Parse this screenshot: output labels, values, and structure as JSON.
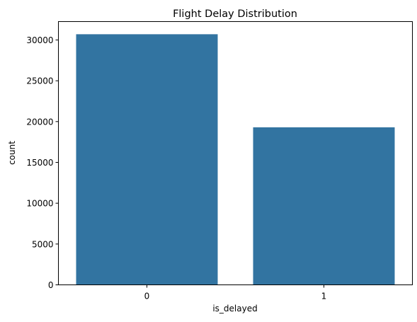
{
  "chart_data": {
    "type": "bar",
    "title": "Flight Delay Distribution",
    "xlabel": "is_delayed",
    "ylabel": "count",
    "categories": [
      "0",
      "1"
    ],
    "values": [
      30700,
      19300
    ],
    "ylim": [
      0,
      32250
    ],
    "yticks": [
      0,
      5000,
      10000,
      15000,
      20000,
      25000,
      30000
    ],
    "bar_color": "#3274a1",
    "grid": false,
    "legend": "none"
  }
}
